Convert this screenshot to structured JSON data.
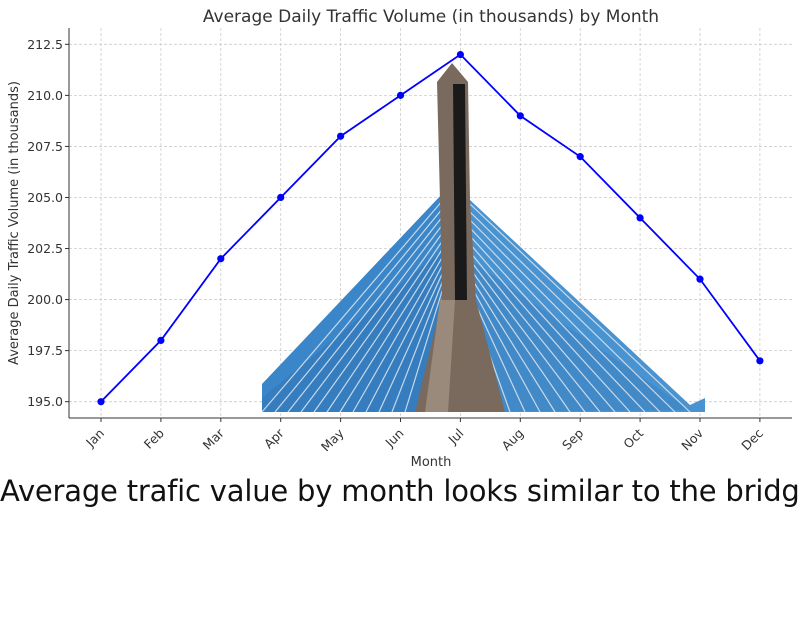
{
  "chart_data": {
    "type": "line",
    "title": "Average Daily Traffic Volume (in thousands) by Month",
    "xlabel": "Month",
    "ylabel": "Average Daily Traffic Volume (in thousands)",
    "categories": [
      "Jan",
      "Feb",
      "Mar",
      "Apr",
      "May",
      "Jun",
      "Jul",
      "Aug",
      "Sep",
      "Oct",
      "Nov",
      "Dec"
    ],
    "series": [
      {
        "values": [
          195.0,
          198.0,
          202.0,
          205.0,
          208.0,
          210.0,
          212.0,
          209.0,
          207.0,
          204.0,
          201.0,
          197.0
        ]
      }
    ],
    "yticks": [
      "195.0",
      "197.5",
      "200.0",
      "202.5",
      "205.0",
      "207.5",
      "210.0",
      "212.5"
    ],
    "ylim": [
      194.2,
      213.3
    ],
    "grid": true,
    "line_color": "#0000ff"
  },
  "caption": "Average trafic value by month looks similar to the bridge",
  "overlay": {
    "bridge_icon": "bridge-tower-icon",
    "cable_color": "#3a86c8",
    "tower_color": "#7a6a5e"
  }
}
